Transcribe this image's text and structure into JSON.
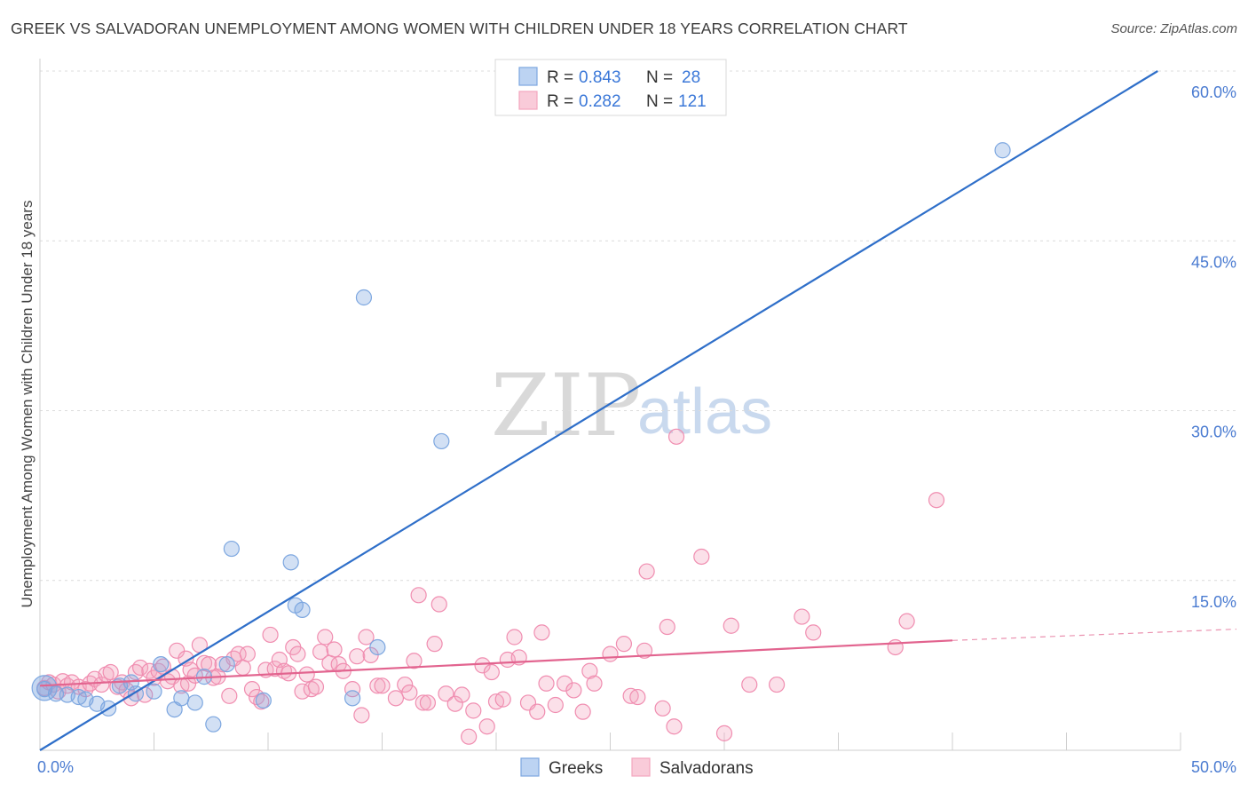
{
  "header": {
    "title": "GREEK VS SALVADORAN UNEMPLOYMENT AMONG WOMEN WITH CHILDREN UNDER 18 YEARS CORRELATION CHART",
    "source": "Source: ZipAtlas.com"
  },
  "watermark": {
    "zip": "ZIP",
    "atlas": "atlas"
  },
  "chart_data": {
    "type": "scatter",
    "title": "GREEK VS SALVADORAN UNEMPLOYMENT AMONG WOMEN WITH CHILDREN UNDER 18 YEARS CORRELATION CHART",
    "xlabel": "",
    "ylabel": "Unemployment Among Women with Children Under 18 years",
    "xlim": [
      0,
      50
    ],
    "ylim": [
      0,
      60
    ],
    "x_tick_labels": [
      {
        "value": 0,
        "label": "0.0%"
      },
      {
        "value": 50,
        "label": "50.0%"
      }
    ],
    "y_tick_labels": [
      {
        "value": 15,
        "label": "15.0%"
      },
      {
        "value": 30,
        "label": "30.0%"
      },
      {
        "value": 45,
        "label": "45.0%"
      },
      {
        "value": 60,
        "label": "60.0%"
      }
    ],
    "legend": {
      "placement": "top-center",
      "entries": [
        {
          "series": "Greeks",
          "r_label": "R = ",
          "r_value": "0.843",
          "n_label": "N = ",
          "n_value": "28"
        },
        {
          "series": "Salvadorans",
          "r_label": "R = ",
          "r_value": "0.282",
          "n_label": "N = ",
          "n_value": "121"
        }
      ]
    },
    "series": [
      {
        "name": "Greeks",
        "color": "#7da7e0",
        "line_color": "#2f6fc9",
        "trend": {
          "x0": 0,
          "y0": 0,
          "x1": 49,
          "y1": 60
        },
        "points": [
          [
            0.2,
            5.4
          ],
          [
            0.7,
            5.0
          ],
          [
            1.2,
            4.9
          ],
          [
            1.7,
            4.7
          ],
          [
            2.0,
            4.5
          ],
          [
            2.5,
            4.1
          ],
          [
            3.0,
            3.7
          ],
          [
            3.5,
            5.7
          ],
          [
            4.0,
            6.0
          ],
          [
            4.2,
            5.0
          ],
          [
            5.0,
            5.2
          ],
          [
            5.3,
            7.6
          ],
          [
            5.9,
            3.6
          ],
          [
            6.2,
            4.6
          ],
          [
            6.8,
            4.2
          ],
          [
            7.2,
            6.5
          ],
          [
            7.6,
            2.3
          ],
          [
            8.2,
            7.6
          ],
          [
            8.4,
            17.8
          ],
          [
            9.8,
            4.4
          ],
          [
            11.0,
            16.6
          ],
          [
            11.2,
            12.8
          ],
          [
            11.5,
            12.4
          ],
          [
            13.7,
            4.6
          ],
          [
            14.2,
            40.0
          ],
          [
            14.8,
            9.1
          ],
          [
            17.6,
            27.3
          ],
          [
            42.2,
            53.0
          ]
        ]
      },
      {
        "name": "Salvadorans",
        "color": "#f4a6bf",
        "line_color": "#e2648f",
        "trend": {
          "x0": 0,
          "y0": 5.7,
          "x1": 40,
          "y1": 9.7
        },
        "trend_dashed": {
          "x0": 40,
          "y0": 9.7,
          "x1": 50,
          "y1": 10.7
        },
        "points": [
          [
            0.2,
            5.5
          ],
          [
            0.4,
            6.0
          ],
          [
            0.6,
            5.8
          ],
          [
            0.8,
            5.2
          ],
          [
            1.0,
            6.1
          ],
          [
            1.2,
            5.7
          ],
          [
            1.4,
            6.0
          ],
          [
            1.7,
            5.6
          ],
          [
            2.0,
            5.4
          ],
          [
            2.2,
            5.9
          ],
          [
            2.4,
            6.3
          ],
          [
            2.7,
            5.8
          ],
          [
            2.9,
            6.7
          ],
          [
            3.1,
            6.9
          ],
          [
            3.4,
            5.6
          ],
          [
            3.6,
            6.0
          ],
          [
            3.8,
            5.3
          ],
          [
            4.0,
            4.6
          ],
          [
            4.2,
            6.9
          ],
          [
            4.4,
            7.3
          ],
          [
            4.6,
            4.9
          ],
          [
            4.8,
            7.0
          ],
          [
            5.0,
            6.4
          ],
          [
            5.2,
            7.0
          ],
          [
            5.4,
            7.4
          ],
          [
            5.6,
            6.1
          ],
          [
            5.8,
            6.5
          ],
          [
            6.0,
            8.8
          ],
          [
            6.2,
            5.7
          ],
          [
            6.4,
            8.1
          ],
          [
            6.5,
            5.9
          ],
          [
            6.6,
            7.1
          ],
          [
            6.8,
            6.6
          ],
          [
            7.0,
            9.3
          ],
          [
            7.2,
            7.7
          ],
          [
            7.4,
            7.6
          ],
          [
            7.6,
            6.4
          ],
          [
            7.8,
            6.5
          ],
          [
            8.0,
            7.6
          ],
          [
            8.3,
            4.8
          ],
          [
            8.5,
            8.1
          ],
          [
            8.7,
            8.5
          ],
          [
            8.9,
            7.3
          ],
          [
            9.1,
            8.5
          ],
          [
            9.3,
            5.4
          ],
          [
            9.5,
            4.7
          ],
          [
            9.7,
            4.3
          ],
          [
            9.9,
            7.1
          ],
          [
            10.1,
            10.2
          ],
          [
            10.3,
            7.2
          ],
          [
            10.5,
            8.0
          ],
          [
            10.7,
            7.0
          ],
          [
            10.9,
            6.8
          ],
          [
            11.1,
            9.1
          ],
          [
            11.3,
            8.5
          ],
          [
            11.5,
            5.2
          ],
          [
            11.7,
            6.7
          ],
          [
            11.9,
            5.4
          ],
          [
            12.1,
            5.6
          ],
          [
            12.3,
            8.7
          ],
          [
            12.5,
            10.0
          ],
          [
            12.7,
            7.7
          ],
          [
            12.9,
            8.9
          ],
          [
            13.1,
            7.6
          ],
          [
            13.3,
            7.0
          ],
          [
            13.7,
            5.4
          ],
          [
            13.9,
            8.3
          ],
          [
            14.1,
            3.1
          ],
          [
            14.3,
            10.0
          ],
          [
            14.5,
            8.4
          ],
          [
            14.8,
            5.7
          ],
          [
            15.0,
            5.7
          ],
          [
            15.6,
            4.6
          ],
          [
            16.0,
            5.8
          ],
          [
            16.2,
            5.1
          ],
          [
            16.4,
            7.9
          ],
          [
            16.6,
            13.7
          ],
          [
            16.8,
            4.2
          ],
          [
            17.0,
            4.2
          ],
          [
            17.3,
            9.4
          ],
          [
            17.5,
            12.9
          ],
          [
            17.8,
            5.0
          ],
          [
            18.2,
            4.1
          ],
          [
            18.5,
            4.9
          ],
          [
            18.8,
            1.2
          ],
          [
            19.0,
            3.5
          ],
          [
            19.4,
            7.5
          ],
          [
            19.6,
            2.1
          ],
          [
            19.8,
            6.9
          ],
          [
            20.0,
            4.3
          ],
          [
            20.3,
            4.5
          ],
          [
            20.5,
            8.0
          ],
          [
            20.8,
            10.0
          ],
          [
            21.0,
            8.2
          ],
          [
            21.4,
            4.2
          ],
          [
            21.8,
            3.4
          ],
          [
            22.0,
            10.4
          ],
          [
            22.2,
            5.9
          ],
          [
            22.6,
            4.0
          ],
          [
            23.0,
            5.9
          ],
          [
            23.4,
            5.3
          ],
          [
            23.8,
            3.4
          ],
          [
            24.1,
            7.0
          ],
          [
            24.3,
            5.9
          ],
          [
            25.0,
            8.5
          ],
          [
            25.6,
            9.4
          ],
          [
            25.9,
            4.8
          ],
          [
            26.2,
            4.7
          ],
          [
            26.5,
            8.8
          ],
          [
            26.6,
            15.8
          ],
          [
            27.3,
            3.7
          ],
          [
            27.5,
            10.9
          ],
          [
            27.8,
            2.1
          ],
          [
            27.9,
            27.7
          ],
          [
            29.0,
            17.1
          ],
          [
            30.0,
            1.5
          ],
          [
            30.3,
            11.0
          ],
          [
            31.1,
            5.8
          ],
          [
            32.3,
            5.8
          ],
          [
            33.4,
            11.8
          ],
          [
            33.9,
            10.4
          ],
          [
            37.5,
            9.1
          ],
          [
            38.0,
            11.4
          ],
          [
            39.3,
            22.1
          ]
        ]
      }
    ]
  }
}
